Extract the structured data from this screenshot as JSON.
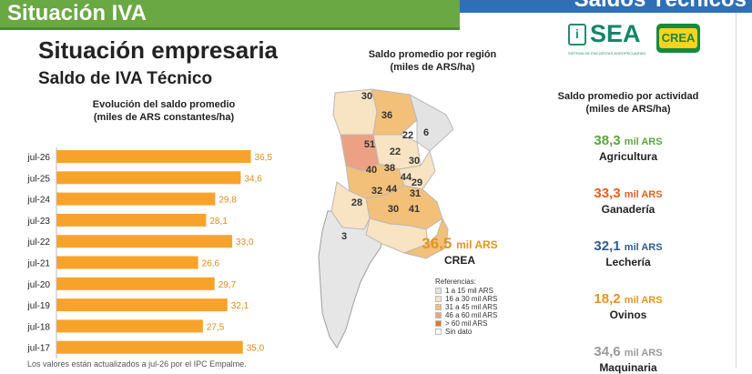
{
  "header": {
    "section_title": "Situación IVA",
    "right_title": "Saldos Técnicos"
  },
  "page": {
    "title": "Situación empresaria",
    "subtitle": "Saldo de IVA Técnico",
    "footnote": "Los valores están actualizados a jul-26 por el IPC Empalme."
  },
  "logos": {
    "sea_text": "SEA",
    "sea_icon": "i",
    "sea_sub": "SISTEMA DE ENCUESTAS AGROPECUARIAS",
    "crea_text": "CREA"
  },
  "colors": {
    "bar": "#f7a32b",
    "bar_label": "#e08b1b",
    "header_green": "#6aa843",
    "header_blue": "#2f6fb6",
    "agricultura": "#5aa73a",
    "ganaderia": "#e85d1e",
    "lecheria": "#2e5e8f",
    "ovinos": "#e5941f",
    "maquinaria": "#9a9a9a"
  },
  "chart_data": [
    {
      "type": "bar",
      "orientation": "horizontal",
      "title_line1": "Evolución del saldo promedio",
      "title_line2": "(miles de ARS constantes/ha)",
      "categories": [
        "jul-26",
        "jul-25",
        "jul-24",
        "jul-23",
        "jul-22",
        "jul-21",
        "jul-20",
        "jul-19",
        "jul-18",
        "jul-17"
      ],
      "values": [
        36.5,
        34.6,
        29.8,
        28.1,
        33.0,
        26.6,
        29.7,
        32.1,
        27.5,
        35.0
      ],
      "labels": [
        "36,5",
        "34,6",
        "29,8",
        "28,1",
        "33,0",
        "26,6",
        "29,7",
        "32,1",
        "27,5",
        "35,0"
      ],
      "xlim": [
        0,
        40
      ],
      "grid": false
    }
  ],
  "map": {
    "title_line1": "Saldo promedio por región",
    "title_line2": "(miles de ARS/ha)",
    "regions": [
      {
        "value": "30",
        "cls": 1
      },
      {
        "value": "36",
        "cls": 2
      },
      {
        "value": "51",
        "cls": 4
      },
      {
        "value": "22",
        "cls": 1
      },
      {
        "value": "6",
        "cls": 0
      },
      {
        "value": "22",
        "cls": 1
      },
      {
        "value": "30",
        "cls": 1
      },
      {
        "value": "40",
        "cls": 2
      },
      {
        "value": "38",
        "cls": 2
      },
      {
        "value": "44",
        "cls": 2
      },
      {
        "value": "29",
        "cls": 1
      },
      {
        "value": "32",
        "cls": 2
      },
      {
        "value": "44",
        "cls": 2
      },
      {
        "value": "31",
        "cls": 2
      },
      {
        "value": "28",
        "cls": 1
      },
      {
        "value": "30",
        "cls": 1
      },
      {
        "value": "41",
        "cls": 2
      },
      {
        "value": "3",
        "cls": 0
      }
    ],
    "crea_value": "36,5",
    "crea_unit": "mil ARS",
    "crea_label": "CREA",
    "legend_title": "Referencias:",
    "legend": [
      {
        "label": "1 a 15 mil ARS",
        "color": "#e3e3e3"
      },
      {
        "label": "16 a 30 mil ARS",
        "color": "#f8e3c2"
      },
      {
        "label": "31 a 45 mil ARS",
        "color": "#f3c07a"
      },
      {
        "label": "46 a 60 mil ARS",
        "color": "#eda184"
      },
      {
        "label": "> 60 mil ARS",
        "color": "#e5771f"
      },
      {
        "label": "Sin dato",
        "color": "#ffffff"
      }
    ]
  },
  "activities": {
    "title_line1": "Saldo promedio por actividad",
    "title_line2": "(miles de ARS/ha)",
    "items": [
      {
        "value": "38,3",
        "unit": "mil ARS",
        "name": "Agricultura"
      },
      {
        "value": "33,3",
        "unit": "mil ARS",
        "name": "Ganadería"
      },
      {
        "value": "32,1",
        "unit": "mil ARS",
        "name": "Lechería"
      },
      {
        "value": "18,2",
        "unit": "mil ARS",
        "name": "Ovinos"
      },
      {
        "value": "34,6",
        "unit": "mil ARS",
        "name": "Maquinaria"
      }
    ]
  }
}
